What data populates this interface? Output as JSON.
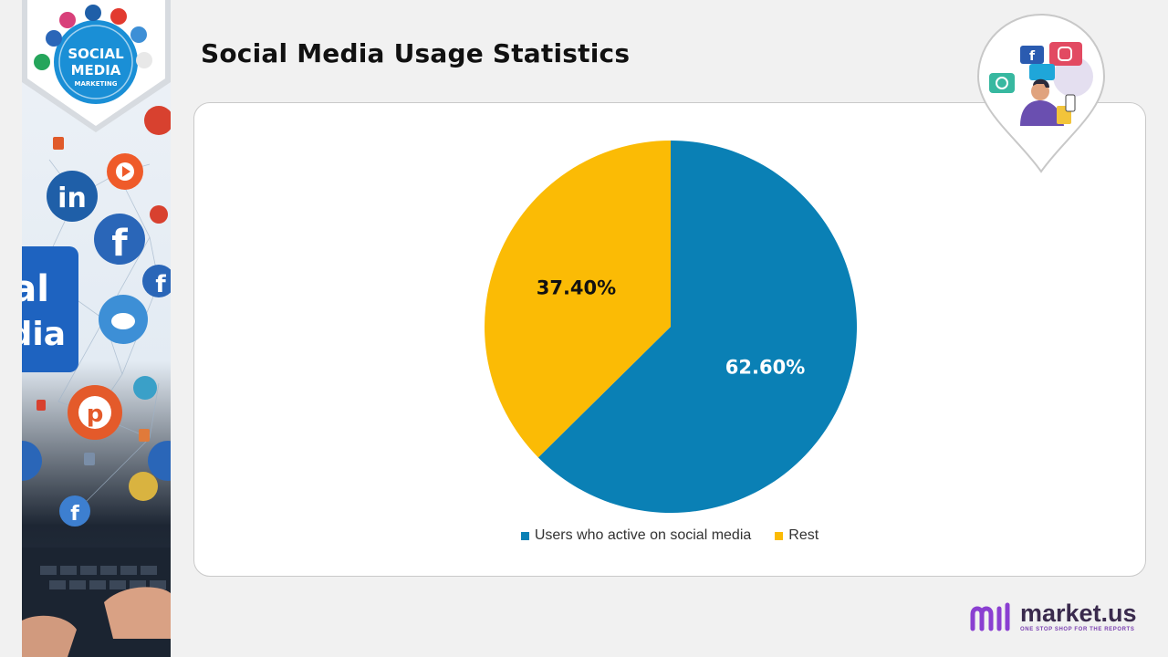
{
  "header": {
    "title": "Social Media Usage Statistics"
  },
  "side_badge": {
    "line1": "SOCIAL",
    "line2": "MEDIA",
    "line3": "MARKETING"
  },
  "side_screen": {
    "line1": "al",
    "line2": "dia"
  },
  "colors": {
    "blue": "#0a80b5",
    "yellow": "#fbbb05",
    "badge": "#1a8fd6",
    "logo": "#8a3fd1"
  },
  "logo": {
    "name": "market.us",
    "tagline": "ONE STOP SHOP FOR THE REPORTS"
  },
  "chart_data": {
    "type": "pie",
    "title": "",
    "slices": [
      {
        "label": "Users who active on social media",
        "value": 62.6,
        "display": "62.60%",
        "color": "#0a80b5",
        "label_color": "#ffffff"
      },
      {
        "label": "Rest",
        "value": 37.4,
        "display": "37.40%",
        "color": "#fbbb05",
        "label_color": "#111111"
      }
    ],
    "legend": {
      "position": "bottom",
      "entries": [
        "Users who active on social media",
        "Rest"
      ]
    }
  }
}
